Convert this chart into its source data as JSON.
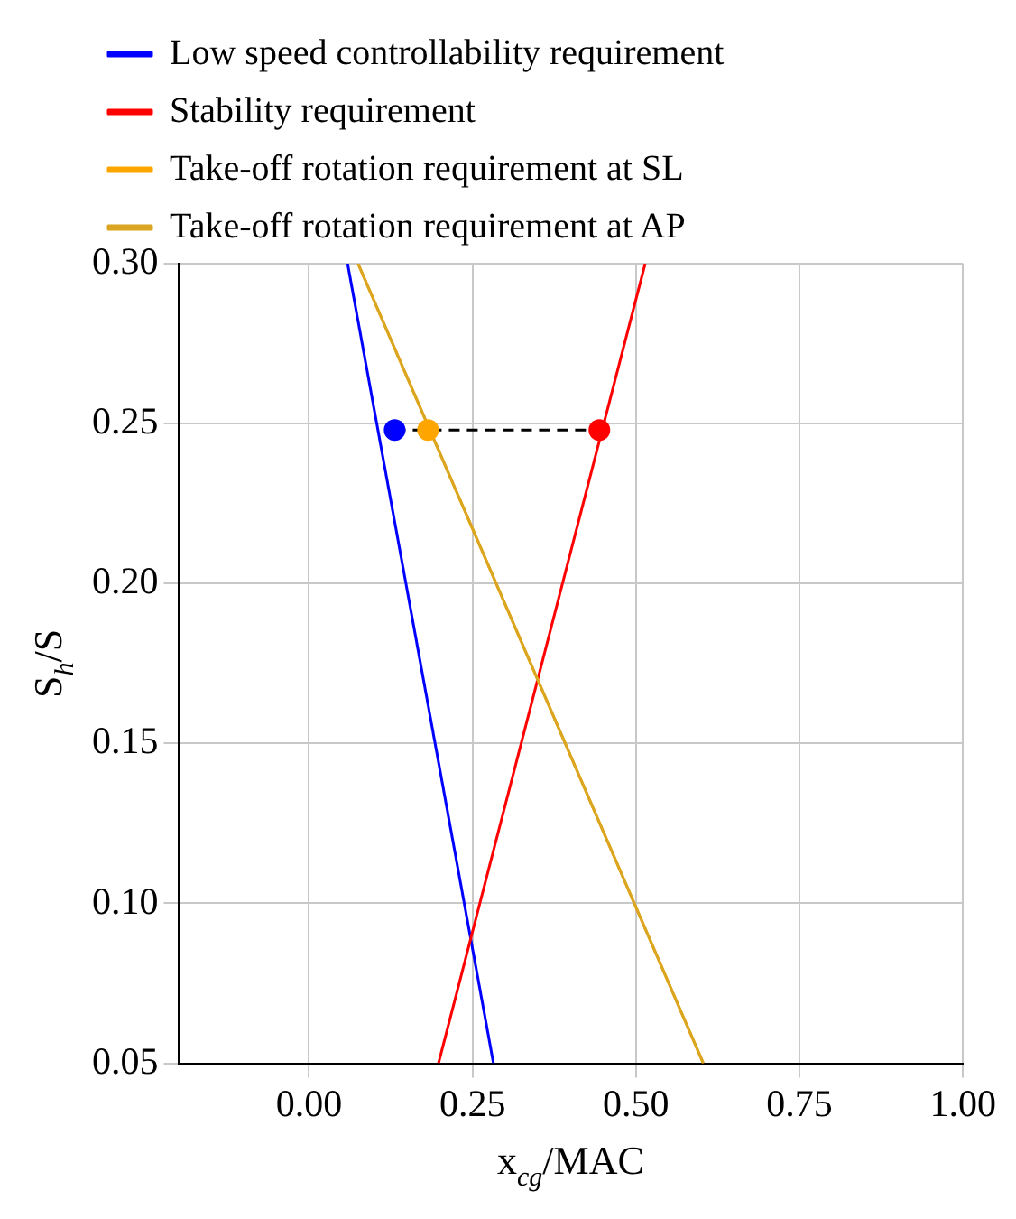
{
  "chart_data": {
    "type": "line",
    "xlabel": "x$_{cg}$/MAC",
    "ylabel": "S$_{h}$/S",
    "xlim": [
      -0.2,
      1.0
    ],
    "xticks": [
      {
        "value": 0,
        "label": "0.00"
      },
      0.25,
      {
        "value": 0.5,
        "label": "0.50"
      },
      0.75,
      {
        "value": 1,
        "label": "1.00"
      }
    ],
    "ylim": [
      0.05,
      0.3
    ],
    "yticks": [
      0.05,
      {
        "value": 0.1,
        "label": "0.10"
      },
      0.15,
      {
        "value": 0.2,
        "label": "0.20"
      },
      0.25,
      {
        "value": 0.3,
        "label": "0.30"
      }
    ],
    "grid": true,
    "legend": "top left",
    "marker": "none",
    "line_style": "solid",
    "series": [
      {
        "name": "Low speed controllability requirement",
        "color": "#0000ff",
        "x": [
          0.059,
          0.282
        ],
        "values": [
          0.3,
          0.05
        ]
      },
      {
        "name": "Stability requirement",
        "color": "#ff0000",
        "x": [
          0.198,
          0.514
        ],
        "values": [
          0.05,
          0.3
        ]
      },
      {
        "name": "Take-off rotation requirement at SL",
        "color": "#ffa500",
        "x": [
          0.075,
          0.603
        ],
        "values": [
          0.3,
          0.05
        ]
      },
      {
        "name": "Take-off rotation requirement at AP",
        "color": "#daa520",
        "x": [
          0.075,
          0.603
        ],
        "values": [
          0.3,
          0.05
        ]
      },
      {
        "type": "line",
        "color": "#000000",
        "line_style": "dashed",
        "marker": "none",
        "x": [
          0.131,
          0.444
        ],
        "values": [
          0.248,
          0.248
        ]
      },
      {
        "type": "scatter",
        "color": "#0000ff",
        "marker": "circle",
        "x": [
          0.131
        ],
        "values": [
          0.248
        ]
      },
      {
        "type": "scatter",
        "color": "#ffa500",
        "marker": "circle",
        "x": [
          0.182
        ],
        "values": [
          0.248
        ]
      },
      {
        "type": "scatter",
        "color": "#ff0000",
        "marker": "circle",
        "x": [
          0.444
        ],
        "values": [
          0.248
        ]
      }
    ]
  }
}
